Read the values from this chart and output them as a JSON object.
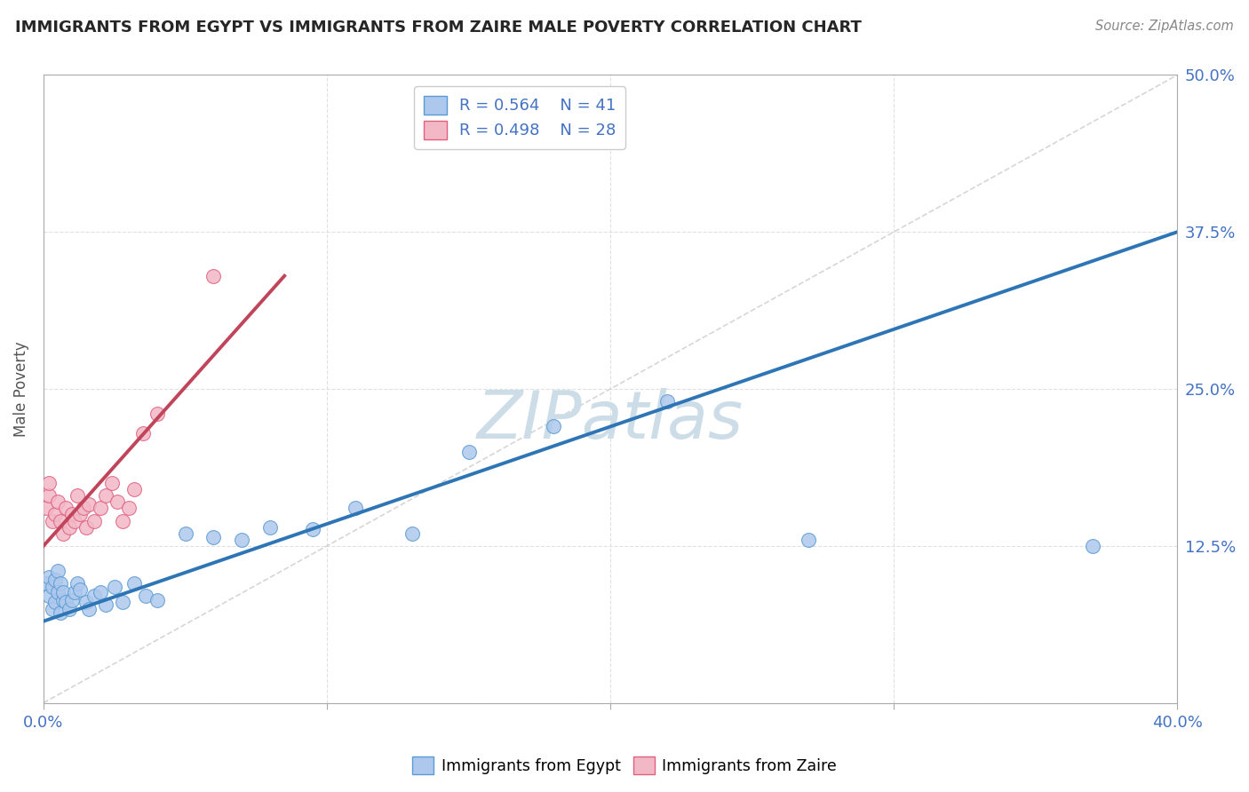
{
  "title": "IMMIGRANTS FROM EGYPT VS IMMIGRANTS FROM ZAIRE MALE POVERTY CORRELATION CHART",
  "source": "Source: ZipAtlas.com",
  "ylabel": "Male Poverty",
  "xlim": [
    0.0,
    0.4
  ],
  "ylim": [
    0.0,
    0.5
  ],
  "xtick_positions": [
    0.0,
    0.1,
    0.2,
    0.3,
    0.4
  ],
  "ytick_positions": [
    0.0,
    0.125,
    0.25,
    0.375,
    0.5
  ],
  "xticklabels": [
    "0.0%",
    "",
    "",
    "",
    "40.0%"
  ],
  "yticklabels": [
    "",
    "12.5%",
    "25.0%",
    "37.5%",
    "50.0%"
  ],
  "egypt_fill_color": "#adc8ec",
  "egypt_edge_color": "#5b9bd5",
  "zaire_fill_color": "#f2b8c6",
  "zaire_edge_color": "#e06080",
  "egypt_line_color": "#2e75b6",
  "zaire_line_color": "#c0445a",
  "diag_color": "#cccccc",
  "grid_color": "#dddddd",
  "legend_r_egypt": "R = 0.564",
  "legend_n_egypt": "N = 41",
  "legend_r_zaire": "R = 0.498",
  "legend_n_zaire": "N = 28",
  "text_color": "#4472c4",
  "title_color": "#262626",
  "watermark_color": "#ccdde8",
  "background_color": "#ffffff",
  "egypt_x": [
    0.001,
    0.002,
    0.002,
    0.003,
    0.003,
    0.004,
    0.004,
    0.005,
    0.005,
    0.006,
    0.006,
    0.007,
    0.007,
    0.008,
    0.009,
    0.01,
    0.011,
    0.012,
    0.013,
    0.015,
    0.016,
    0.018,
    0.02,
    0.022,
    0.025,
    0.028,
    0.032,
    0.036,
    0.04,
    0.05,
    0.06,
    0.07,
    0.08,
    0.095,
    0.11,
    0.13,
    0.15,
    0.18,
    0.22,
    0.27,
    0.37
  ],
  "egypt_y": [
    0.095,
    0.085,
    0.1,
    0.075,
    0.092,
    0.08,
    0.098,
    0.088,
    0.105,
    0.072,
    0.095,
    0.082,
    0.088,
    0.08,
    0.075,
    0.082,
    0.088,
    0.095,
    0.09,
    0.08,
    0.075,
    0.085,
    0.088,
    0.078,
    0.092,
    0.08,
    0.095,
    0.085,
    0.082,
    0.135,
    0.132,
    0.13,
    0.14,
    0.138,
    0.155,
    0.135,
    0.2,
    0.22,
    0.24,
    0.13,
    0.125
  ],
  "zaire_x": [
    0.001,
    0.002,
    0.002,
    0.003,
    0.004,
    0.005,
    0.006,
    0.007,
    0.008,
    0.009,
    0.01,
    0.011,
    0.012,
    0.013,
    0.014,
    0.015,
    0.016,
    0.018,
    0.02,
    0.022,
    0.024,
    0.026,
    0.028,
    0.03,
    0.032,
    0.035,
    0.04,
    0.06
  ],
  "zaire_y": [
    0.155,
    0.165,
    0.175,
    0.145,
    0.15,
    0.16,
    0.145,
    0.135,
    0.155,
    0.14,
    0.15,
    0.145,
    0.165,
    0.15,
    0.155,
    0.14,
    0.158,
    0.145,
    0.155,
    0.165,
    0.175,
    0.16,
    0.145,
    0.155,
    0.17,
    0.215,
    0.23,
    0.34
  ],
  "egypt_line_x": [
    0.0,
    0.4
  ],
  "egypt_line_y": [
    0.065,
    0.375
  ],
  "zaire_line_x": [
    0.0,
    0.085
  ],
  "zaire_line_y": [
    0.125,
    0.34
  ]
}
